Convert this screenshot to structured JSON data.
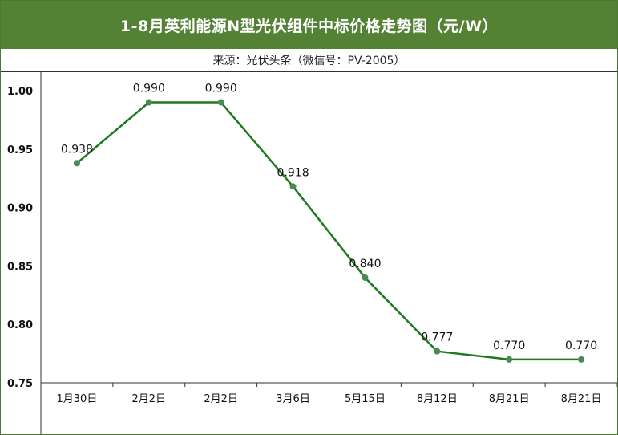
{
  "title": "1-8月英利能源N型光伏组件中标价格走势图（元/W）",
  "subtitle": "来源：光伏头条（微信号：PV-2005）",
  "colors": {
    "header_bg": "#548235",
    "line": "#1f7a1f",
    "marker": "#4a8a5a"
  },
  "chart_data": {
    "type": "line",
    "title": "1-8月英利能源N型光伏组件中标价格走势图（元/W）",
    "subtitle": "来源：光伏头条（微信号：PV-2005）",
    "xlabel": "",
    "ylabel": "",
    "categories": [
      "1月30日",
      "2月2日",
      "2月2日",
      "3月6日",
      "5月15日",
      "8月12日",
      "8月21日",
      "8月21日"
    ],
    "values": [
      0.938,
      0.99,
      0.99,
      0.918,
      0.84,
      0.777,
      0.77,
      0.77
    ],
    "data_labels": [
      "0.938",
      "0.990",
      "0.990",
      "0.918",
      "0.840",
      "0.777",
      "0.770",
      "0.770"
    ],
    "yticks": [
      "0.75",
      "0.80",
      "0.85",
      "0.90",
      "0.95",
      "1.00"
    ],
    "ylim": [
      0.75,
      1.0
    ],
    "grid": false,
    "legend": "none"
  }
}
